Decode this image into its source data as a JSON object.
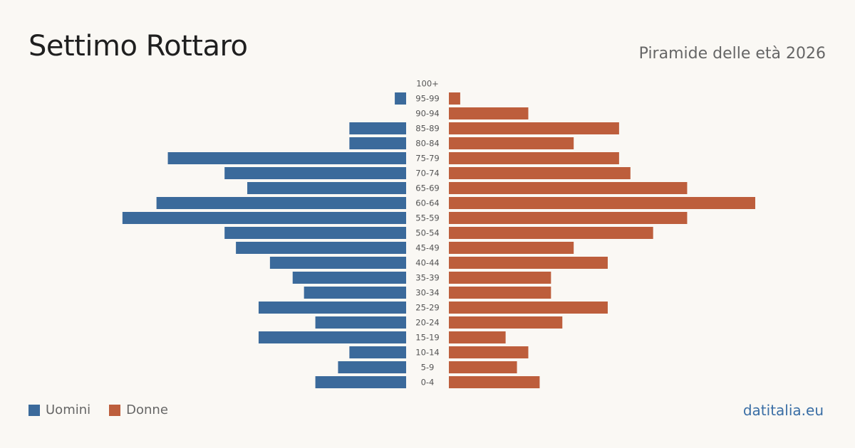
{
  "header": {
    "title": "Settimo Rottaro",
    "subtitle": "Piramide delle età 2026"
  },
  "legend": {
    "men_label": "Uomini",
    "women_label": "Donne"
  },
  "source": "datitalia.eu",
  "colors": {
    "men": "#3b6a9b",
    "women": "#bd5e3c",
    "tick_label": "#555555"
  },
  "chart_data": {
    "type": "bar",
    "orientation": "horizontal-pyramid",
    "categories": [
      "100+",
      "95-99",
      "90-94",
      "85-89",
      "80-84",
      "75-79",
      "70-74",
      "65-69",
      "60-64",
      "55-59",
      "50-54",
      "45-49",
      "40-44",
      "35-39",
      "30-34",
      "25-29",
      "20-24",
      "15-19",
      "10-14",
      "5-9",
      "0-4"
    ],
    "series": [
      {
        "name": "Uomini",
        "values": [
          0,
          1,
          0,
          5,
          5,
          21,
          16,
          14,
          22,
          25,
          16,
          15,
          12,
          10,
          9,
          13,
          8,
          13,
          5,
          6,
          8
        ]
      },
      {
        "name": "Donne",
        "values": [
          0,
          1,
          7,
          15,
          11,
          15,
          16,
          21,
          27,
          21,
          18,
          11,
          14,
          9,
          9,
          14,
          10,
          5,
          7,
          6,
          8
        ]
      }
    ],
    "legend_position": "bottom-left",
    "grid": false
  }
}
